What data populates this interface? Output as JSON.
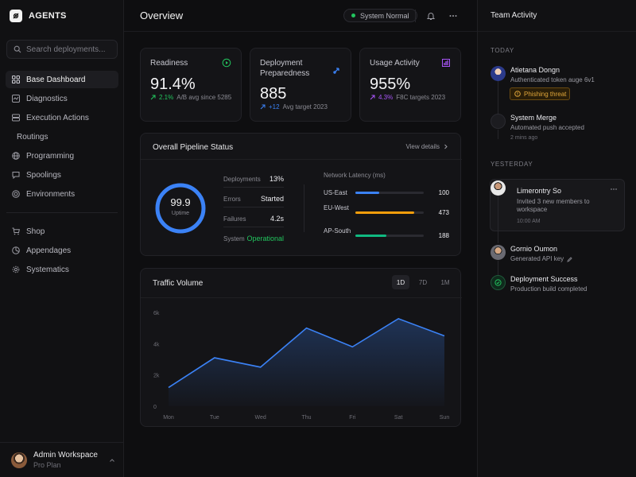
{
  "brand": {
    "name": "AGENTS"
  },
  "search": {
    "placeholder": "Search deployments..."
  },
  "nav": {
    "primary": [
      {
        "label": "Base Dashboard",
        "icon": "grid-icon",
        "active": true
      },
      {
        "label": "Diagnostics",
        "icon": "pulse-icon"
      },
      {
        "label": "Execution Actions",
        "icon": "server-icon"
      },
      {
        "label": "Routings",
        "icon": "",
        "sub": true
      },
      {
        "label": "Programming",
        "icon": "globe-icon"
      },
      {
        "label": "Spoolings",
        "icon": "chat-icon"
      },
      {
        "label": "Environments",
        "icon": "target-icon"
      }
    ],
    "secondary": [
      {
        "label": "Shop",
        "icon": "cart-icon"
      },
      {
        "label": "Appendages",
        "icon": "pie-icon"
      },
      {
        "label": "Systematics",
        "icon": "gear-icon"
      }
    ]
  },
  "user": {
    "name": "Admin Workspace",
    "plan": "Pro Plan"
  },
  "header": {
    "title": "Overview",
    "status": "System Normal",
    "status_color": "#22c55e"
  },
  "kpis": [
    {
      "title": "Readiness",
      "value": "91.4%",
      "delta": "2.1%",
      "note": "A/B avg since 5285",
      "accent": "#22c55e",
      "icon": "play-circle-icon"
    },
    {
      "title": "Deployment Preparedness",
      "value": "885",
      "delta": "+12",
      "note": "Avg target 2023",
      "accent": "#3b82f6",
      "icon": "rocket-icon"
    },
    {
      "title": "Usage Activity",
      "value": "955%",
      "delta": "4.3%",
      "note": "F8C targets 2023",
      "accent": "#a855f7",
      "icon": "bar-chart-icon"
    }
  ],
  "pipeline": {
    "title": "Overall Pipeline Status",
    "view_details": "View details",
    "uptime_value": "99.9",
    "uptime_label": "Uptime",
    "uptime_fraction": 0.999,
    "stats": [
      {
        "label": "Deployments",
        "value": "13%"
      },
      {
        "label": "Errors",
        "value": "Started"
      },
      {
        "label": "Failures",
        "value": "4.2s"
      },
      {
        "label": "System",
        "value": "Operational"
      }
    ],
    "latency_title": "Network Latency (ms)",
    "latency": [
      {
        "region": "US-East",
        "value": "100",
        "fill": 0.35,
        "color": "#3b82f6"
      },
      {
        "region": "EU-West",
        "value": "473",
        "fill": 0.86,
        "color": "#f59e0b"
      },
      {
        "region": "AP-South",
        "value": "188",
        "fill": 0.45,
        "color": "#10b981"
      }
    ]
  },
  "traffic": {
    "title": "Traffic Volume",
    "ranges": [
      "1D",
      "7D",
      "1M"
    ],
    "active_range": "1D"
  },
  "chart_data": {
    "type": "area",
    "title": "Traffic Volume",
    "categories": [
      "Mon",
      "Tue",
      "Wed",
      "Thu",
      "Fri",
      "Sat",
      "Sun"
    ],
    "values": [
      1200,
      3100,
      2500,
      5000,
      3800,
      5600,
      4500
    ],
    "yticks": [
      "0",
      "2k",
      "4k",
      "6k"
    ],
    "ylim": [
      0,
      6000
    ],
    "xlabel": "",
    "ylabel": "",
    "grid": false,
    "color": "#3b82f6"
  },
  "activity": {
    "title": "Team Activity",
    "today_label": "TODAY",
    "yesterday_label": "YESTERDAY",
    "today": [
      {
        "name": "Atietana Dongn",
        "desc": "Authenticated token auge 6v1",
        "tag": "Phishing threat"
      },
      {
        "name": "System Merge",
        "desc": "Automated push accepted",
        "time": "2 mins ago"
      }
    ],
    "yesterday": [
      {
        "name": "Limerontry So",
        "desc": "Invited 3 new members to workspace",
        "time": "10:00 AM"
      },
      {
        "name": "Gornio Oumon",
        "desc": "Generated API key"
      },
      {
        "name": "Deployment Success",
        "desc": "Production build completed"
      }
    ]
  }
}
